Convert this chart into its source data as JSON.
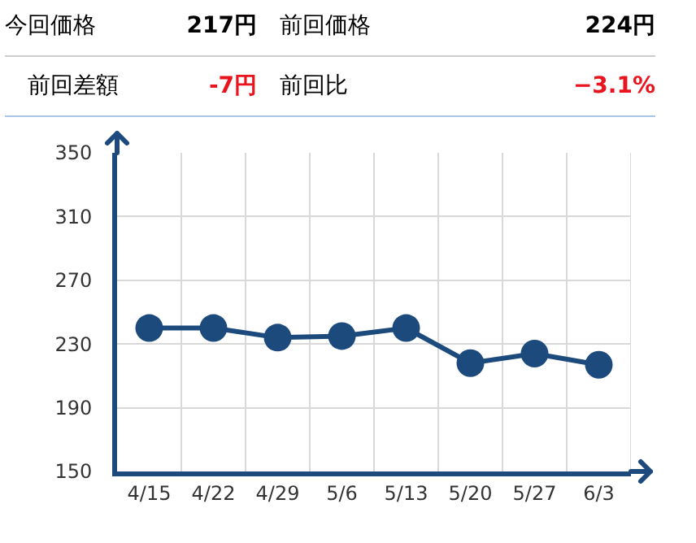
{
  "chart_data": {
    "type": "line",
    "categories": [
      "4/15",
      "4/22",
      "4/29",
      "5/6",
      "5/13",
      "5/20",
      "5/27",
      "6/3"
    ],
    "series": [
      {
        "color": "#1c4a7d",
        "values": [
          240,
          240,
          234,
          235,
          240,
          218,
          224,
          217
        ]
      }
    ],
    "ylim": [
      150,
      350
    ],
    "yticks": [
      150,
      190,
      230,
      270,
      310,
      350
    ],
    "grid": true,
    "marker": "circle",
    "line_style": "solid",
    "annotations": [
      "今回価格",
      "217円",
      "前回価格",
      "224円",
      "前回差額",
      "-7円",
      "前回比",
      "−3.1%"
    ]
  }
}
